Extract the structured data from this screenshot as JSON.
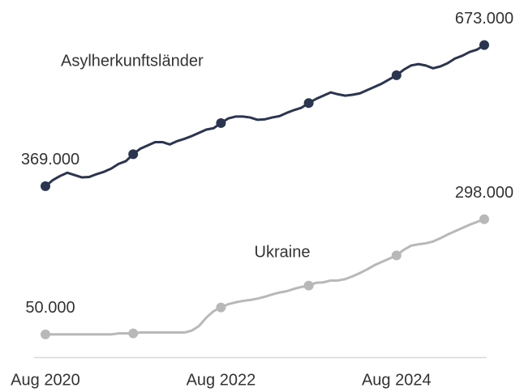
{
  "chart_data": {
    "type": "line",
    "categories": [
      "Aug 2020",
      null,
      null,
      null,
      null,
      null,
      null,
      null,
      null,
      null,
      null,
      null,
      null,
      null,
      null,
      null,
      null,
      null,
      null,
      null,
      null,
      null,
      null,
      null,
      "Aug 2022",
      null,
      null,
      null,
      null,
      null,
      null,
      null,
      null,
      null,
      null,
      null,
      null,
      null,
      null,
      null,
      null,
      null,
      null,
      null,
      null,
      null,
      null,
      null,
      "Aug 2024",
      null,
      null,
      null,
      null,
      null,
      null,
      null,
      null,
      null,
      null,
      null,
      null
    ],
    "ylim": [
      0,
      770000
    ],
    "marker_every": 12,
    "series": [
      {
        "name": "Asylherkunftsländer",
        "color": "#2b3550",
        "values": [
          369000,
          382000,
          391000,
          398000,
          393000,
          388000,
          389000,
          395000,
          400000,
          407000,
          417000,
          423000,
          438000,
          450000,
          457000,
          464000,
          464000,
          459000,
          466000,
          471000,
          477000,
          484000,
          491000,
          494000,
          505000,
          515000,
          519000,
          519000,
          517000,
          512000,
          513000,
          517000,
          520000,
          527000,
          533000,
          538000,
          548000,
          557000,
          564000,
          571000,
          567000,
          564000,
          566000,
          569000,
          576000,
          583000,
          590000,
          599000,
          608000,
          620000,
          629000,
          632000,
          629000,
          623000,
          627000,
          634000,
          644000,
          650000,
          658000,
          663000,
          673000
        ],
        "value_labels": [
          "369.000",
          null,
          null,
          null,
          null,
          null,
          null,
          null,
          null,
          null,
          null,
          null,
          null,
          null,
          null,
          null,
          null,
          null,
          null,
          null,
          null,
          null,
          null,
          null,
          null,
          null,
          null,
          null,
          null,
          null,
          null,
          null,
          null,
          null,
          null,
          null,
          null,
          null,
          null,
          null,
          null,
          null,
          null,
          null,
          null,
          null,
          null,
          null,
          null,
          null,
          null,
          null,
          null,
          null,
          null,
          null,
          null,
          null,
          null,
          null,
          "673.000"
        ]
      },
      {
        "name": "Ukraine",
        "color": "#b8b8b8",
        "values": [
          50000,
          50000,
          50000,
          50000,
          50000,
          50000,
          50000,
          50000,
          50000,
          50000,
          52000,
          52000,
          52000,
          54000,
          54000,
          54000,
          54000,
          54000,
          54000,
          54000,
          58000,
          68000,
          86000,
          100000,
          108000,
          115000,
          119000,
          122000,
          124000,
          127000,
          131000,
          136000,
          140000,
          143000,
          148000,
          152000,
          155000,
          161000,
          162000,
          166000,
          166000,
          169000,
          175000,
          182000,
          190000,
          199000,
          206000,
          213000,
          220000,
          232000,
          241000,
          244000,
          246000,
          250000,
          257000,
          265000,
          272000,
          279000,
          286000,
          292000,
          298000
        ],
        "value_labels": [
          "50.000",
          null,
          null,
          null,
          null,
          null,
          null,
          null,
          null,
          null,
          null,
          null,
          null,
          null,
          null,
          null,
          null,
          null,
          null,
          null,
          null,
          null,
          null,
          null,
          null,
          null,
          null,
          null,
          null,
          null,
          null,
          null,
          null,
          null,
          null,
          null,
          null,
          null,
          null,
          null,
          null,
          null,
          null,
          null,
          null,
          null,
          null,
          null,
          null,
          null,
          null,
          null,
          null,
          null,
          null,
          null,
          null,
          null,
          null,
          null,
          "298.000"
        ]
      }
    ]
  }
}
